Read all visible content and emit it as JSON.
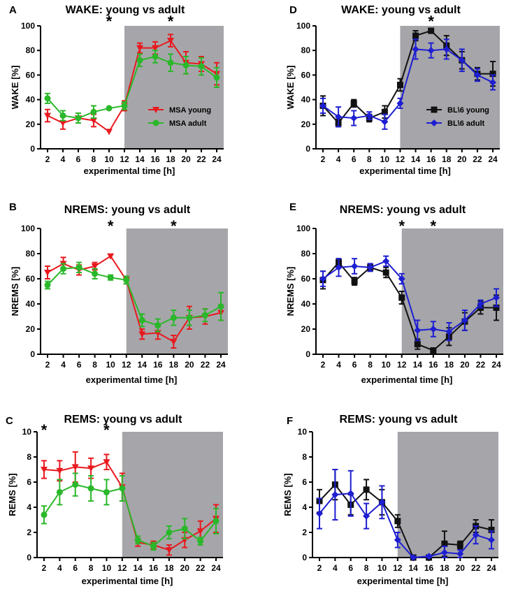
{
  "chart_data": [
    {
      "panel_label": "A",
      "type": "line",
      "title": "WAKE: young vs adult",
      "xlabel": "experimental time [h]",
      "ylabel": "WAKE [%]",
      "x": [
        2,
        4,
        6,
        8,
        10,
        12,
        14,
        16,
        18,
        20,
        22,
        24
      ],
      "xticks": [
        "2",
        "4",
        "6",
        "8",
        "10",
        "12",
        "14",
        "16",
        "18",
        "20",
        "22",
        "24"
      ],
      "yticks": [
        "0",
        "20",
        "40",
        "60",
        "80",
        "100"
      ],
      "ylim": [
        0,
        100
      ],
      "dark_period": [
        12,
        24
      ],
      "legend_position": "middle-right",
      "series": [
        {
          "name": "MSA young",
          "color": "#e8191e",
          "marker": "triangle-down",
          "values": [
            27,
            21,
            25,
            23,
            14,
            35,
            82,
            82,
            88,
            70,
            69,
            61
          ],
          "errors": [
            5,
            5,
            4,
            5,
            0,
            4,
            4,
            5,
            5,
            9,
            6,
            9
          ]
        },
        {
          "name": "MSA adult",
          "color": "#2ab82a",
          "marker": "circle",
          "values": [
            41,
            27,
            25,
            30,
            33,
            35,
            72,
            75,
            70,
            68,
            67,
            58
          ],
          "errors": [
            4,
            4,
            4,
            5,
            0,
            3,
            5,
            5,
            7,
            7,
            7,
            8
          ]
        }
      ],
      "annotations": [
        {
          "x": 10,
          "text": "*"
        },
        {
          "x": 18,
          "text": "*"
        }
      ]
    },
    {
      "panel_label": "B",
      "type": "line",
      "title": "NREMS: young vs adult",
      "xlabel": "experimental time [h]",
      "ylabel": "NREMS [%]",
      "x": [
        2,
        4,
        6,
        8,
        10,
        12,
        14,
        16,
        18,
        20,
        22,
        24
      ],
      "xticks": [
        "2",
        "4",
        "6",
        "8",
        "10",
        "12",
        "14",
        "16",
        "18",
        "20",
        "22",
        "24"
      ],
      "yticks": [
        "0",
        "20",
        "40",
        "60",
        "80",
        "100"
      ],
      "ylim": [
        0,
        100
      ],
      "dark_period": [
        12,
        24
      ],
      "series": [
        {
          "name": "MSA young",
          "color": "#e8191e",
          "marker": "triangle-down",
          "values": [
            65,
            72,
            67,
            70,
            78,
            59,
            16,
            17,
            10,
            29,
            30,
            33
          ],
          "errors": [
            5,
            5,
            4,
            3,
            0,
            3,
            4,
            5,
            5,
            9,
            6,
            6
          ]
        },
        {
          "name": "MSA adult",
          "color": "#2ab82a",
          "marker": "circle",
          "values": [
            55,
            68,
            69,
            64,
            61,
            59,
            27,
            23,
            29,
            29,
            31,
            38
          ],
          "errors": [
            3,
            4,
            4,
            4,
            2,
            3,
            5,
            5,
            6,
            6,
            5,
            11
          ]
        }
      ],
      "annotations": [
        {
          "x": 10,
          "text": "*"
        },
        {
          "x": 18,
          "text": "*"
        }
      ]
    },
    {
      "panel_label": "C",
      "type": "line",
      "title": "REMS: young vs adult",
      "xlabel": "experimental time [h]",
      "ylabel": "REMS [%]",
      "x": [
        2,
        4,
        6,
        8,
        10,
        12,
        14,
        16,
        18,
        20,
        22,
        24
      ],
      "xticks": [
        "2",
        "4",
        "6",
        "8",
        "10",
        "12",
        "14",
        "16",
        "18",
        "20",
        "22",
        "24"
      ],
      "yticks": [
        "0",
        "2",
        "4",
        "6",
        "8",
        "10"
      ],
      "ylim": [
        0,
        10
      ],
      "dark_period": [
        12,
        24
      ],
      "series": [
        {
          "name": "MSA young",
          "color": "#e8191e",
          "marker": "triangle-down",
          "values": [
            7.0,
            6.9,
            7.2,
            7.1,
            7.6,
            5.6,
            1.2,
            1.0,
            0.6,
            1.4,
            2.1,
            3.1
          ],
          "errors": [
            0.7,
            0.8,
            1.2,
            0.8,
            0.6,
            1.1,
            0.3,
            0.3,
            0.4,
            0.6,
            0.8,
            1.1
          ]
        },
        {
          "name": "MSA adult",
          "color": "#2ab82a",
          "marker": "circle",
          "values": [
            3.4,
            5.2,
            5.8,
            5.5,
            5.2,
            5.5,
            1.4,
            0.9,
            2.0,
            2.3,
            1.3,
            2.9
          ],
          "errors": [
            0.7,
            1.0,
            0.9,
            1.0,
            1.0,
            1.0,
            0.3,
            0.3,
            0.5,
            0.8,
            0.3,
            1.0
          ]
        }
      ],
      "annotations": [
        {
          "x": 2,
          "text": "*"
        },
        {
          "x": 10,
          "text": "*"
        }
      ]
    },
    {
      "panel_label": "D",
      "type": "line",
      "title": "WAKE: young vs adult",
      "xlabel": "experimental time [h]",
      "ylabel": "WAKE [%]",
      "x": [
        2,
        4,
        6,
        8,
        10,
        12,
        14,
        16,
        18,
        20,
        22,
        24
      ],
      "xticks": [
        "2",
        "4",
        "6",
        "8",
        "10",
        "12",
        "14",
        "16",
        "18",
        "20",
        "22",
        "24"
      ],
      "yticks": [
        "0",
        "20",
        "40",
        "60",
        "80",
        "100"
      ],
      "ylim": [
        0,
        100
      ],
      "dark_period": [
        12,
        24
      ],
      "legend_position": "middle-right",
      "series": [
        {
          "name": "BL\\6 young",
          "color": "#111111",
          "marker": "square",
          "values": [
            35,
            21,
            37,
            25,
            30,
            52,
            92,
            96,
            84,
            72,
            61,
            61
          ],
          "errors": [
            8,
            3,
            3,
            3,
            5,
            5,
            4,
            2,
            8,
            7,
            5,
            10
          ]
        },
        {
          "name": "BL\\6 adult",
          "color": "#1e1ed2",
          "marker": "diamond",
          "values": [
            35,
            26,
            25,
            27,
            22,
            37,
            81,
            80,
            81,
            72,
            60,
            54
          ],
          "errors": [
            6,
            8,
            6,
            3,
            6,
            4,
            8,
            6,
            8,
            9,
            5,
            6
          ]
        }
      ],
      "annotations": [
        {
          "x": 16,
          "text": "*"
        }
      ]
    },
    {
      "panel_label": "E",
      "type": "line",
      "title": "NREMS: young vs adult",
      "xlabel": "experimental time [h]",
      "ylabel": "NREMS [%]",
      "x": [
        2,
        4,
        6,
        8,
        10,
        12,
        14,
        16,
        18,
        20,
        22,
        24
      ],
      "xticks": [
        "2",
        "4",
        "6",
        "8",
        "10",
        "12",
        "14",
        "16",
        "18",
        "20",
        "22",
        "24"
      ],
      "yticks": [
        "0",
        "20",
        "40",
        "60",
        "80",
        "100"
      ],
      "ylim": [
        0,
        100
      ],
      "dark_period": [
        12,
        24
      ],
      "series": [
        {
          "name": "BL\\6 young",
          "color": "#111111",
          "marker": "square",
          "values": [
            59,
            73,
            58,
            69,
            65,
            45,
            8,
            3,
            14,
            26,
            37,
            37
          ],
          "errors": [
            7,
            3,
            3,
            3,
            4,
            5,
            4,
            2,
            7,
            7,
            5,
            10
          ]
        },
        {
          "name": "BL\\6 adult",
          "color": "#1e1ed2",
          "marker": "diamond",
          "values": [
            60,
            69,
            70,
            69,
            74,
            60,
            19,
            20,
            18,
            27,
            40,
            45
          ],
          "errors": [
            6,
            7,
            6,
            3,
            4,
            4,
            8,
            6,
            7,
            8,
            3,
            7
          ]
        }
      ],
      "annotations": [
        {
          "x": 12,
          "text": "*"
        },
        {
          "x": 16,
          "text": "*"
        }
      ]
    },
    {
      "panel_label": "F",
      "type": "line",
      "title": "REMS: young vs adult",
      "xlabel": "experimental time [h]",
      "ylabel": "REMS [%]",
      "x": [
        2,
        4,
        6,
        8,
        10,
        12,
        14,
        16,
        18,
        20,
        22,
        24
      ],
      "xticks": [
        "2",
        "4",
        "6",
        "8",
        "10",
        "12",
        "14",
        "16",
        "18",
        "20",
        "22",
        "24"
      ],
      "yticks": [
        "0",
        "2",
        "4",
        "6",
        "8",
        "10"
      ],
      "ylim": [
        0,
        10
      ],
      "dark_period": [
        12,
        24
      ],
      "series": [
        {
          "name": "BL\\6 young",
          "color": "#111111",
          "marker": "square",
          "values": [
            4.5,
            5.8,
            4.2,
            5.4,
            4.4,
            2.9,
            0.0,
            0.0,
            1.1,
            1.0,
            2.5,
            2.2
          ],
          "errors": [
            0.9,
            1.2,
            0.8,
            0.8,
            1.0,
            0.5,
            0.1,
            0.1,
            1.0,
            0.3,
            0.5,
            0.8
          ]
        },
        {
          "name": "BL\\6 adult",
          "color": "#1e1ed2",
          "marker": "diamond",
          "values": [
            3.5,
            5.0,
            5.1,
            3.3,
            4.4,
            1.4,
            0.0,
            0.1,
            0.4,
            0.3,
            1.8,
            1.4
          ],
          "errors": [
            1.2,
            2.0,
            1.8,
            1.0,
            1.3,
            0.6,
            0.1,
            0.1,
            0.5,
            0.3,
            0.7,
            0.7
          ]
        }
      ],
      "annotations": []
    }
  ]
}
